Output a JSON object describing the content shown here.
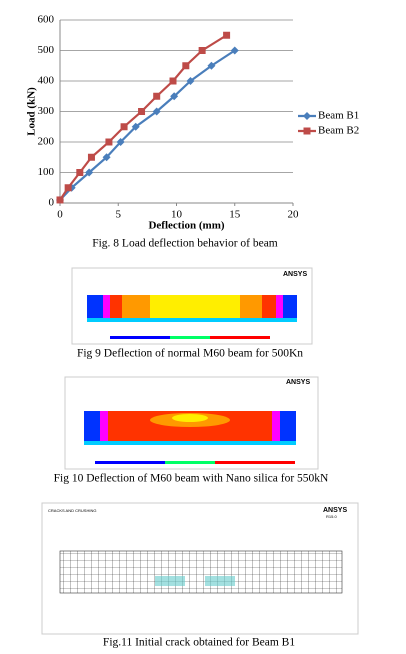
{
  "chart_data": {
    "type": "line",
    "xlabel": "Deflection (mm)",
    "ylabel": "Load (kN)",
    "xlim": [
      0,
      20
    ],
    "xticks": [
      0,
      5,
      10,
      15,
      20
    ],
    "ylim": [
      0,
      600
    ],
    "yticks": [
      0,
      100,
      200,
      300,
      400,
      500,
      600
    ],
    "grid": true,
    "legend": "right",
    "series": [
      {
        "name": "Beam B1",
        "color": "#4a7ebb",
        "marker": "diamond",
        "x": [
          0,
          1,
          2.5,
          4,
          5.2,
          6.5,
          8.3,
          9.8,
          11.2,
          13,
          15
        ],
        "values": [
          10,
          50,
          100,
          150,
          200,
          250,
          300,
          350,
          400,
          450,
          500
        ]
      },
      {
        "name": "Beam B2",
        "color": "#be4b48",
        "marker": "square",
        "x": [
          0,
          0.7,
          1.7,
          2.7,
          4.2,
          5.5,
          7,
          8.3,
          9.7,
          10.8,
          12.2,
          14.3
        ],
        "values": [
          10,
          50,
          100,
          150,
          200,
          250,
          300,
          350,
          400,
          450,
          500,
          550
        ]
      }
    ]
  },
  "captions": [
    "Fig. 8 Load deflection behavior of beam",
    "Fig 9 Deflection of normal M60 beam for 500Kn",
    "Fig 10 Deflection of M60 beam with Nano silica for 550kN",
    "Fig.11 Initial crack obtained for Beam B1"
  ],
  "images": [
    {
      "logo": "ANSYS"
    },
    {
      "logo": "ANSYS"
    },
    {
      "logo": "ANSYS",
      "version": "R15.0",
      "heading": "CRACKS AND CRUSHING"
    }
  ]
}
